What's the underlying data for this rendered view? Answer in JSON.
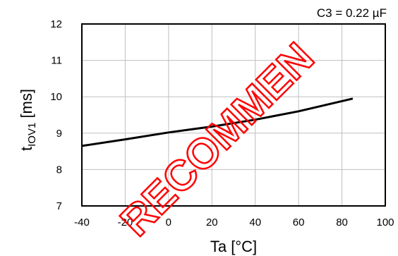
{
  "chart_data": {
    "type": "line",
    "title": "",
    "annotation": "C3 = 0.22 µF",
    "xlabel": "Ta [°C]",
    "ylabel": {
      "main": "t",
      "subscript": "IOV1",
      "unit": " [ms]"
    },
    "xlim": [
      -40,
      100
    ],
    "ylim": [
      7,
      12
    ],
    "xticks": [
      -40,
      -20,
      0,
      20,
      40,
      60,
      80,
      100
    ],
    "yticks": [
      7,
      8,
      9,
      10,
      11,
      12
    ],
    "grid": true,
    "series": [
      {
        "x": [
          -40,
          -20,
          0,
          10,
          20,
          40,
          60,
          85
        ],
        "y": [
          8.65,
          8.83,
          9.02,
          9.1,
          9.18,
          9.37,
          9.6,
          9.95
        ]
      }
    ]
  },
  "watermark": {
    "text": "RECOMMEN",
    "color": "#ff0000"
  }
}
